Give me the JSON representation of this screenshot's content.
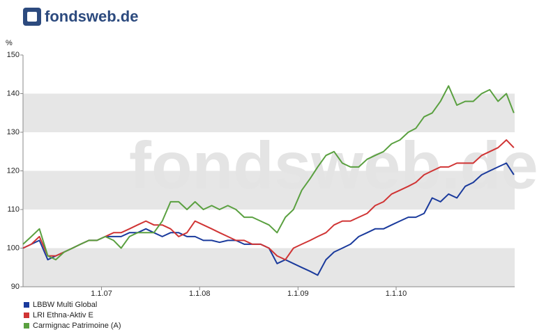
{
  "logo": "fondsweb.de",
  "chart_data": {
    "type": "line",
    "y_label": "%",
    "x": [
      "2006-03-15",
      "2006-04-15",
      "2006-05-15",
      "2006-06-15",
      "2006-07-15",
      "2006-08-15",
      "2006-09-15",
      "2006-10-15",
      "2006-11-15",
      "2006-12-15",
      "2007-01-15",
      "2007-02-15",
      "2007-03-15",
      "2007-04-15",
      "2007-05-15",
      "2007-06-15",
      "2007-07-15",
      "2007-08-15",
      "2007-09-15",
      "2007-10-15",
      "2007-11-15",
      "2007-12-15",
      "2008-01-15",
      "2008-02-15",
      "2008-03-15",
      "2008-04-15",
      "2008-05-15",
      "2008-06-15",
      "2008-07-15",
      "2008-08-15",
      "2008-09-15",
      "2008-10-15",
      "2008-11-15",
      "2008-12-15",
      "2009-01-15",
      "2009-02-15",
      "2009-03-15",
      "2009-04-15",
      "2009-05-15",
      "2009-06-15",
      "2009-07-15",
      "2009-08-15",
      "2009-09-15",
      "2009-10-15",
      "2009-11-15",
      "2009-12-15",
      "2010-01-15",
      "2010-02-15",
      "2010-03-15",
      "2010-04-15",
      "2010-05-15",
      "2010-06-15",
      "2010-07-15",
      "2010-08-15",
      "2010-09-15",
      "2010-10-15",
      "2010-11-15",
      "2010-12-15",
      "2011-01-15",
      "2011-02-15",
      "2011-03-15"
    ],
    "series": [
      {
        "name": "LBBW Multi Global",
        "color": "#1a3a9c",
        "values": [
          100,
          101,
          102,
          97,
          98,
          99,
          100,
          101,
          102,
          102,
          103,
          103,
          103,
          104,
          104,
          105,
          104,
          103,
          104,
          104,
          103,
          103,
          102,
          102,
          101.5,
          102,
          102,
          101,
          101,
          101,
          100,
          96,
          97,
          96,
          95,
          94,
          93,
          97,
          99,
          100,
          101,
          103,
          104,
          105,
          105,
          106,
          107,
          108,
          108,
          109,
          113,
          112,
          114,
          113,
          116,
          117,
          119,
          120,
          121,
          122,
          119
        ]
      },
      {
        "name": "LRI Ethna-Aktiv E",
        "color": "#d03434",
        "values": [
          100,
          101,
          103,
          98,
          98,
          99,
          100,
          101,
          102,
          102,
          103,
          104,
          104,
          105,
          106,
          107,
          106,
          106,
          105,
          103,
          104,
          107,
          106,
          105,
          104,
          103,
          102,
          102,
          101,
          101,
          100,
          98,
          97,
          100,
          101,
          102,
          103,
          104,
          106,
          107,
          107,
          108,
          109,
          111,
          112,
          114,
          115,
          116,
          117,
          119,
          120,
          121,
          121,
          122,
          122,
          122,
          124,
          125,
          126,
          128,
          126
        ]
      },
      {
        "name": "Carmignac Patrimoine (A)",
        "color": "#5aa040",
        "values": [
          101,
          103,
          105,
          98,
          97,
          99,
          100,
          101,
          102,
          102,
          103,
          102,
          100,
          103,
          104,
          104,
          104,
          107,
          112,
          112,
          110,
          112,
          110,
          111,
          110,
          111,
          110,
          108,
          108,
          107,
          106,
          104,
          108,
          110,
          115,
          118,
          121,
          124,
          125,
          122,
          121,
          121,
          123,
          124,
          125,
          127,
          128,
          130,
          131,
          134,
          135,
          138,
          142,
          137,
          138,
          138,
          140,
          141,
          138,
          140,
          135
        ]
      }
    ],
    "xlim": [
      "2006-03-15",
      "2011-03-18"
    ],
    "xticks": [
      {
        "value": "2007-01-01",
        "label": "1.1.07"
      },
      {
        "value": "2008-01-01",
        "label": "1.1.08"
      },
      {
        "value": "2009-01-01",
        "label": "1.1.09"
      },
      {
        "value": "2010-01-01",
        "label": "1.1.10"
      }
    ],
    "ylim": [
      90,
      150
    ],
    "yticks": [
      90,
      100,
      110,
      120,
      130,
      140,
      150
    ],
    "legend": "bottom-left"
  }
}
